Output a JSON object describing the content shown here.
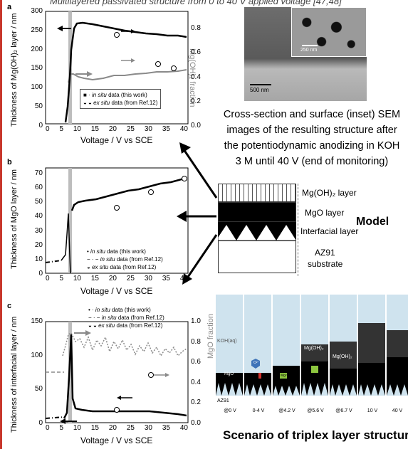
{
  "top_text": "Multilayered passivated structure from 0 to 40 V applied voltage [47,48]",
  "panels": {
    "a": {
      "letter": "a",
      "ylabel": "Thickness of Mg(OH)₂ layer / nm",
      "ylabel_right": "Mg(OH)₂ fraction",
      "xlabel": "Voltage / V vs SCE",
      "xticks": [
        "0",
        "5",
        "10",
        "15",
        "20",
        "25",
        "30",
        "35",
        "40"
      ],
      "yticks": [
        "0",
        "50",
        "100",
        "150",
        "200",
        "250",
        "300"
      ],
      "rticks": [
        "0.0",
        "0.2",
        "0.4",
        "0.6",
        "0.8"
      ],
      "legend": [
        {
          "marker": "■ ·",
          "text_italic": "in situ",
          "text": " data (this work)"
        },
        {
          "marker": "◒ ◒",
          "text_italic": "ex situ",
          "text": " data (from Ref.12)"
        }
      ]
    },
    "b": {
      "letter": "b",
      "ylabel": "Thickness of MgO layer / nm",
      "xlabel": "Voltage / V vs SCE",
      "xticks": [
        "0",
        "5",
        "10",
        "15",
        "20",
        "25",
        "30",
        "35",
        "40"
      ],
      "yticks": [
        "0",
        "10",
        "20",
        "30",
        "40",
        "50",
        "60",
        "70"
      ],
      "legend": [
        {
          "marker": "•",
          "text_italic": "in situ",
          "text": " data (this work)"
        },
        {
          "marker": "− · −",
          "text_italic": "in situ",
          "text": " data (from Ref.12)"
        },
        {
          "marker": "◒",
          "text_italic": "ex situ",
          "text": " data (from Ref.12)"
        }
      ]
    },
    "c": {
      "letter": "c",
      "ylabel": "Thickness of interfacial layer / nm",
      "ylabel_right": "MgO fraction",
      "xlabel": "Voltage / V vs SCE",
      "xticks": [
        "0",
        "5",
        "10",
        "15",
        "20",
        "25",
        "30",
        "35",
        "40"
      ],
      "yticks": [
        "0",
        "50",
        "100",
        "150"
      ],
      "rticks": [
        "0.0",
        "0.2",
        "0.4",
        "0.6",
        "0.8",
        "1.0"
      ],
      "legend": [
        {
          "marker": "• ·",
          "text_italic": "in situ",
          "text": " data (this work)"
        },
        {
          "marker": "− · −",
          "text_italic": "in situ",
          "text": " data (from Ref.12)"
        },
        {
          "marker": "◒ ◒",
          "text_italic": "ex situ",
          "text": " data (from Ref.12)"
        }
      ]
    }
  },
  "sem": {
    "inset_scale": "250 nm",
    "main_scale": "500 nm"
  },
  "caption": {
    "line1": "Cross-section and surface (inset) SEM",
    "line2": "images of the resulting structure after",
    "line3": "the potentiodynamic anodizing in KOH",
    "line4": "3 M until 40 V (end of monitoring)"
  },
  "model": {
    "layer1": "Mg(OH)₂ layer",
    "layer2": "MgO layer",
    "layer3": "Interfacial layer",
    "layer4a": "AZ91",
    "layer4b": "substrate",
    "title": "Model"
  },
  "scenario": {
    "title": "Scenario of triplex layer structure",
    "koh": "KOH(aq)",
    "az91": "AZ91",
    "mgo": "MgO",
    "mg2": "Mg²⁺",
    "o2": "O²⁻",
    "mgoh2": "Mg(OH)₂",
    "steps": [
      "@0 V",
      "0-4 V",
      "@4.2 V",
      "@5.6 V",
      "@6.7 V",
      "10 V",
      "40 V"
    ]
  },
  "colors": {
    "border": "#c8372c",
    "grey_series": "#8a8a8a",
    "highlight_band": "#bdbdbd",
    "electrolyte": "#cfe3ee",
    "ion_green": "#8dc63f",
    "ion_blue": "#3e73b8"
  }
}
